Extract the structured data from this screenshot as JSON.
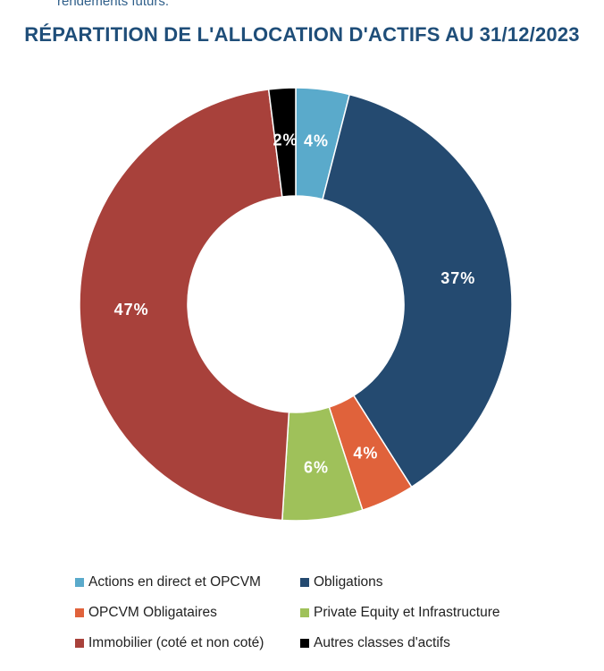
{
  "header": {
    "intro_text": "rendements futurs.",
    "title": "RÉPARTITION DE L'ALLOCATION D'ACTIFS AU 31/12/2023"
  },
  "chart_data": {
    "type": "pie",
    "title": "RÉPARTITION DE L'ALLOCATION D'ACTIFS AU 31/12/2023",
    "donut": true,
    "unit": "%",
    "legend_position": "bottom",
    "slices": [
      {
        "name": "Actions en direct et OPCVM",
        "value": 4,
        "label": "4%",
        "color": "#5aaacb"
      },
      {
        "name": "Obligations",
        "value": 37,
        "label": "37%",
        "color": "#244a70"
      },
      {
        "name": "OPCVM Obligataires",
        "value": 4,
        "label": "4%",
        "color": "#e0623b"
      },
      {
        "name": "Private Equity et Infrastructure",
        "value": 6,
        "label": "6%",
        "color": "#9fc15a"
      },
      {
        "name": "Immobilier (coté et non coté)",
        "value": 47,
        "label": "47%",
        "color": "#a8413b"
      },
      {
        "name": "Autres classes d'actifs",
        "value": 2,
        "label": "2%",
        "color": "#000000"
      }
    ]
  }
}
